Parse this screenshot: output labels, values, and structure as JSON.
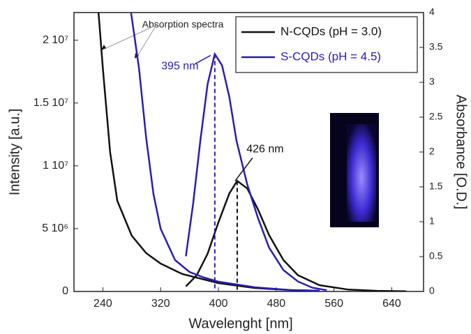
{
  "chart_data": {
    "type": "line",
    "x_label": "Wavelenght [nm]",
    "y_label": "Intensity [a.u.]",
    "y2_label": "Absorbance [O.D.]",
    "xlim": [
      200,
      684
    ],
    "xticks": [
      240,
      320,
      400,
      480,
      560,
      640
    ],
    "ylim": [
      0,
      22200000
    ],
    "yticks": [
      0,
      {
        "value": 5000000,
        "label": "5 10⁶"
      },
      {
        "value": 10000000,
        "label": "1 10⁷"
      },
      {
        "value": 15000000,
        "label": "1.5 10⁷"
      },
      {
        "value": 20000000,
        "label": "2 10⁷"
      }
    ],
    "y2lim": [
      0,
      4
    ],
    "y2ticks": [
      0,
      0.5,
      1,
      1.5,
      2,
      2.5,
      3,
      3.5,
      4
    ],
    "legend": "top-right",
    "series": [
      {
        "name": "N-CQDs (pH = 3.0)",
        "color": "#111111",
        "x": [
          355,
          370,
          385,
          400,
          415,
          426,
          440,
          455,
          470,
          490,
          510,
          540,
          580,
          620,
          660
        ],
        "values": [
          400000,
          1300000,
          3000000,
          5500000,
          7800000,
          8800000,
          8200000,
          6500000,
          4500000,
          2500000,
          1300000,
          500000,
          150000,
          50000,
          10000
        ]
      },
      {
        "name": "S-CQDs (pH = 4.5)",
        "color": "#2a1cb0",
        "x": [
          355,
          365,
          375,
          385,
          395,
          405,
          415,
          425,
          440,
          455,
          470,
          490,
          510,
          530,
          550
        ],
        "values": [
          2800000,
          7000000,
          12000000,
          16500000,
          18900000,
          18000000,
          15500000,
          12000000,
          8500000,
          5800000,
          3500000,
          1700000,
          800000,
          300000,
          100000
        ]
      },
      {
        "color": "#111111",
        "axis": "y2",
        "x": [
          234,
          240,
          250,
          260,
          280,
          300,
          320,
          350,
          400,
          450,
          500,
          540
        ],
        "values": [
          4,
          3.2,
          2,
          1.3,
          0.8,
          0.55,
          0.4,
          0.25,
          0.12,
          0.05,
          0.02,
          0.01
        ]
      },
      {
        "color": "#2a1cb0",
        "axis": "y2",
        "x": [
          279,
          290,
          300,
          310,
          320,
          340,
          360,
          380,
          400,
          450,
          500,
          540
        ],
        "values": [
          4,
          3.2,
          2.2,
          1.4,
          0.9,
          0.45,
          0.28,
          0.2,
          0.14,
          0.06,
          0.02,
          0.01
        ]
      }
    ],
    "annotations": [
      {
        "text": "395 nm",
        "x": 395,
        "y": 18900000,
        "color": "#2a1cb0"
      },
      {
        "text": "426 nm",
        "x": 426,
        "y": 8800000,
        "color": "#111111"
      }
    ],
    "absorption_note": "Absorption spectra"
  }
}
